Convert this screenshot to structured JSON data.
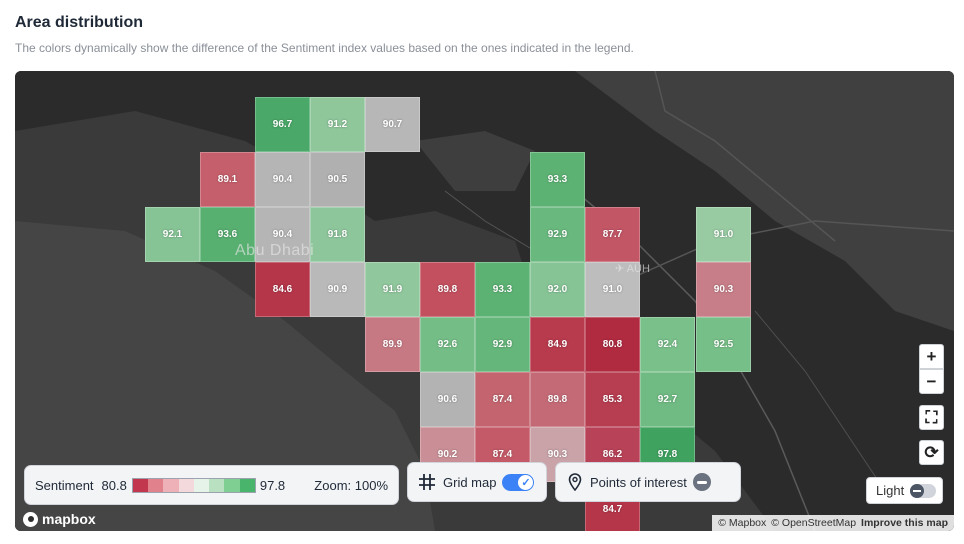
{
  "header": {
    "title": "Area distribution",
    "subtitle": "The colors dynamically show the difference of the Sentiment index values based on the ones indicated in the legend."
  },
  "map": {
    "city_label": "Abu Dhabi",
    "airport_label": "AUH",
    "cells": [
      {
        "value": "96.7",
        "color": "#4aa868"
      },
      {
        "value": "91.2",
        "color": "#8fc79b"
      },
      {
        "value": "90.7",
        "color": "#b7b7b7"
      },
      {
        "value": "89.1",
        "color": "#c55f6b"
      },
      {
        "value": "90.4",
        "color": "#b5b5b5"
      },
      {
        "value": "90.5",
        "color": "#b0b0b0"
      },
      {
        "value": "93.3",
        "color": "#5cb273"
      },
      {
        "value": "92.1",
        "color": "#86c496"
      },
      {
        "value": "93.6",
        "color": "#57af70"
      },
      {
        "value": "90.4",
        "color": "#b5b5b5"
      },
      {
        "value": "91.8",
        "color": "#8ec69c"
      },
      {
        "value": "92.9",
        "color": "#69b87e"
      },
      {
        "value": "87.7",
        "color": "#c25665"
      },
      {
        "value": "91.0",
        "color": "#99cba3"
      },
      {
        "value": "84.6",
        "color": "#b53649"
      },
      {
        "value": "90.9",
        "color": "#b9b9b9"
      },
      {
        "value": "91.9",
        "color": "#91c79d"
      },
      {
        "value": "89.8",
        "color": "#c3505f"
      },
      {
        "value": "93.3",
        "color": "#5cb273"
      },
      {
        "value": "92.0",
        "color": "#86c496"
      },
      {
        "value": "91.0",
        "color": "#bdbdbd"
      },
      {
        "value": "90.3",
        "color": "#c77e88"
      },
      {
        "value": "89.9",
        "color": "#c77983"
      },
      {
        "value": "92.6",
        "color": "#74bd86"
      },
      {
        "value": "92.9",
        "color": "#65b67b"
      },
      {
        "value": "84.9",
        "color": "#b83a4d"
      },
      {
        "value": "80.8",
        "color": "#b02a40"
      },
      {
        "value": "92.4",
        "color": "#7ac08b"
      },
      {
        "value": "92.5",
        "color": "#77bf88"
      },
      {
        "value": "90.6",
        "color": "#b3b3b3"
      },
      {
        "value": "87.4",
        "color": "#c4646f"
      },
      {
        "value": "89.8",
        "color": "#c46a76"
      },
      {
        "value": "85.3",
        "color": "#b73d50"
      },
      {
        "value": "92.7",
        "color": "#70bb83"
      },
      {
        "value": "90.2",
        "color": "#ca8f96"
      },
      {
        "value": "87.4",
        "color": "#c45a67"
      },
      {
        "value": "90.3",
        "color": "#c9a3a8"
      },
      {
        "value": "86.2",
        "color": "#b84257"
      },
      {
        "value": "97.8",
        "color": "#3fa25f"
      },
      {
        "value": "84.7",
        "color": "#b53649"
      }
    ]
  },
  "legend": {
    "label": "Sentiment",
    "min": "80.8",
    "max": "97.8",
    "zoom_text": "Zoom: 100%",
    "scale_colors": [
      "#c2374d",
      "#e0818c",
      "#eeb1b8",
      "#f3d9dc",
      "#e6f3e8",
      "#b9e0c1",
      "#7fcf93",
      "#49b46b"
    ]
  },
  "controls": {
    "grid_map_label": "Grid map",
    "poi_label": "Points of interest",
    "zoom_in": "+",
    "zoom_out": "−",
    "fullscreen": "⛶",
    "reset": "⟳",
    "light_label": "Light"
  },
  "attribution": {
    "logo_text": "mapbox",
    "mapbox": "© Mapbox",
    "osm": "© OpenStreetMap",
    "improve": "Improve this map"
  }
}
